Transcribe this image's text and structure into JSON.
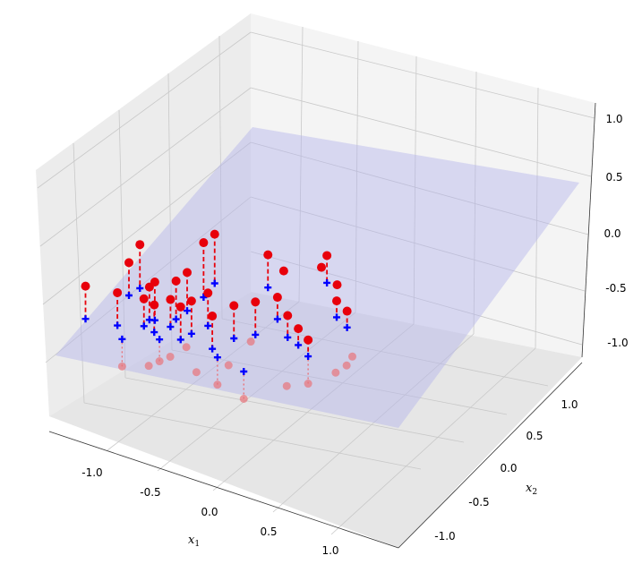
{
  "chart_data": {
    "type": "scatter3d",
    "title": "",
    "xlabel": "x",
    "xlabel_sub": "1",
    "ylabel": "x",
    "ylabel_sub": "2",
    "zlabel": "",
    "xlim": [
      -1.4,
      1.4
    ],
    "ylim": [
      -1.4,
      1.4
    ],
    "zlim": [
      -1.1,
      1.1
    ],
    "x_ticks": [
      "-1.0",
      "-0.5",
      "0.0",
      "0.5",
      "1.0"
    ],
    "y_ticks": [
      "-1.0",
      "-0.5",
      "0.0",
      "0.5",
      "1.0"
    ],
    "z_ticks": [
      "-1.0",
      "-0.5",
      "0.0",
      "0.5",
      "1.0"
    ],
    "grid": true,
    "colors": {
      "above": "#e8000b",
      "below": "#e8737a",
      "projected": "#0000ff",
      "plane": "#b4b4ec",
      "pane": "#f2f2f2",
      "grid": "#c8c8c8"
    },
    "series": [
      {
        "marker": "circle",
        "color": "#e8000b",
        "points": [
          {
            "x": -1.15,
            "y": -0.95,
            "z": 0.05
          },
          {
            "x": -0.85,
            "y": -0.8,
            "z": 0.05
          },
          {
            "x": -0.75,
            "y": -0.35,
            "z": 0.25
          },
          {
            "x": -0.65,
            "y": -0.15,
            "z": 0.4
          },
          {
            "x": -0.6,
            "y": -0.7,
            "z": 0.05
          },
          {
            "x": -0.55,
            "y": -0.6,
            "z": 0.15
          },
          {
            "x": -0.5,
            "y": -0.55,
            "z": 0.2
          },
          {
            "x": -0.5,
            "y": -0.8,
            "z": 0.05
          },
          {
            "x": -0.35,
            "y": -0.6,
            "z": 0.1
          },
          {
            "x": -0.3,
            "y": -0.45,
            "z": 0.25
          },
          {
            "x": -0.25,
            "y": -0.75,
            "z": 0.1
          },
          {
            "x": -0.2,
            "y": -0.2,
            "z": 0.3
          },
          {
            "x": -0.15,
            "y": -0.6,
            "z": 0.15
          },
          {
            "x": -0.05,
            "y": 0.1,
            "z": 0.55
          },
          {
            "x": 0.0,
            "y": -0.3,
            "z": 0.2
          },
          {
            "x": 0.05,
            "y": 0.35,
            "z": 0.6
          },
          {
            "x": 0.05,
            "y": -0.7,
            "z": 0.1
          },
          {
            "x": 0.25,
            "y": -0.45,
            "z": 0.2
          },
          {
            "x": 0.45,
            "y": -0.25,
            "z": 0.25
          },
          {
            "x": 0.55,
            "y": 0.65,
            "z": 0.5
          },
          {
            "x": 0.65,
            "y": 0.2,
            "z": 0.25
          },
          {
            "x": 0.75,
            "y": 0.05,
            "z": 0.15
          },
          {
            "x": 0.85,
            "y": 0.1,
            "z": 0.05
          },
          {
            "x": 0.95,
            "y": -0.2,
            "z": 0.05
          },
          {
            "x": 0.7,
            "y": 0.65,
            "z": 0.4
          },
          {
            "x": 1.1,
            "y": 1.15,
            "z": 0.55
          },
          {
            "x": 1.05,
            "y": 1.05,
            "z": 0.45
          },
          {
            "x": 1.2,
            "y": 1.0,
            "z": 0.35
          },
          {
            "x": 1.2,
            "y": 0.8,
            "z": 0.25
          },
          {
            "x": 1.3,
            "y": 0.75,
            "z": 0.2
          }
        ]
      },
      {
        "marker": "circle",
        "color": "#e8737a",
        "points": [
          {
            "x": -0.8,
            "y": -1.05,
            "z": -0.55
          },
          {
            "x": -0.55,
            "y": -0.9,
            "z": -0.5
          },
          {
            "x": -0.45,
            "y": -0.8,
            "z": -0.45
          },
          {
            "x": -0.35,
            "y": -0.7,
            "z": -0.4
          },
          {
            "x": -0.2,
            "y": -0.55,
            "z": -0.3
          },
          {
            "x": -0.1,
            "y": -0.75,
            "z": -0.45
          },
          {
            "x": 0.1,
            "y": -0.75,
            "z": -0.5
          },
          {
            "x": 0.2,
            "y": -0.5,
            "z": -0.35
          },
          {
            "x": 0.35,
            "y": -0.75,
            "z": -0.55
          },
          {
            "x": 0.4,
            "y": 0.05,
            "z": -0.2
          },
          {
            "x": 0.75,
            "y": -0.35,
            "z": -0.4
          },
          {
            "x": 0.95,
            "y": -0.2,
            "z": -0.35
          },
          {
            "x": 1.2,
            "y": 0.35,
            "z": -0.3
          },
          {
            "x": 1.3,
            "y": 0.55,
            "z": -0.25
          },
          {
            "x": 1.35,
            "y": 0.75,
            "z": -0.2
          }
        ]
      },
      {
        "marker": "plus",
        "color": "#0000ff",
        "points": [
          {
            "x": -1.15,
            "y": -0.95,
            "z": -0.25
          },
          {
            "x": -0.85,
            "y": -0.8,
            "z": -0.25
          },
          {
            "x": -0.8,
            "y": -1.05,
            "z": -0.3
          },
          {
            "x": -0.75,
            "y": -0.35,
            "z": -0.05
          },
          {
            "x": -0.65,
            "y": -0.15,
            "z": 0.0
          },
          {
            "x": -0.6,
            "y": -0.7,
            "z": -0.2
          },
          {
            "x": -0.55,
            "y": -0.6,
            "z": -0.15
          },
          {
            "x": -0.5,
            "y": -0.55,
            "z": -0.15
          },
          {
            "x": -0.5,
            "y": -0.8,
            "z": -0.2
          },
          {
            "x": -0.45,
            "y": -0.8,
            "z": -0.25
          },
          {
            "x": -0.35,
            "y": -0.6,
            "z": -0.15
          },
          {
            "x": -0.3,
            "y": -0.45,
            "z": -0.1
          },
          {
            "x": -0.25,
            "y": -0.75,
            "z": -0.2
          },
          {
            "x": -0.2,
            "y": -0.2,
            "z": -0.05
          },
          {
            "x": -0.15,
            "y": -0.6,
            "z": -0.15
          },
          {
            "x": -0.05,
            "y": 0.1,
            "z": 0.05
          },
          {
            "x": 0.0,
            "y": -0.3,
            "z": -0.1
          },
          {
            "x": 0.05,
            "y": 0.35,
            "z": 0.15
          },
          {
            "x": 0.05,
            "y": -0.7,
            "z": -0.2
          },
          {
            "x": 0.1,
            "y": -0.75,
            "z": -0.25
          },
          {
            "x": 0.25,
            "y": -0.45,
            "z": -0.1
          },
          {
            "x": 0.35,
            "y": -0.75,
            "z": -0.3
          },
          {
            "x": 0.45,
            "y": -0.25,
            "z": -0.05
          },
          {
            "x": 0.55,
            "y": 0.65,
            "z": 0.2
          },
          {
            "x": 0.65,
            "y": 0.2,
            "z": 0.05
          },
          {
            "x": 0.75,
            "y": 0.05,
            "z": -0.05
          },
          {
            "x": 0.85,
            "y": 0.1,
            "z": -0.1
          },
          {
            "x": 0.95,
            "y": -0.2,
            "z": -0.1
          },
          {
            "x": 1.1,
            "y": 1.15,
            "z": 0.3
          },
          {
            "x": 1.2,
            "y": 0.8,
            "z": 0.1
          },
          {
            "x": 1.3,
            "y": 0.75,
            "z": 0.05
          }
        ]
      }
    ]
  }
}
